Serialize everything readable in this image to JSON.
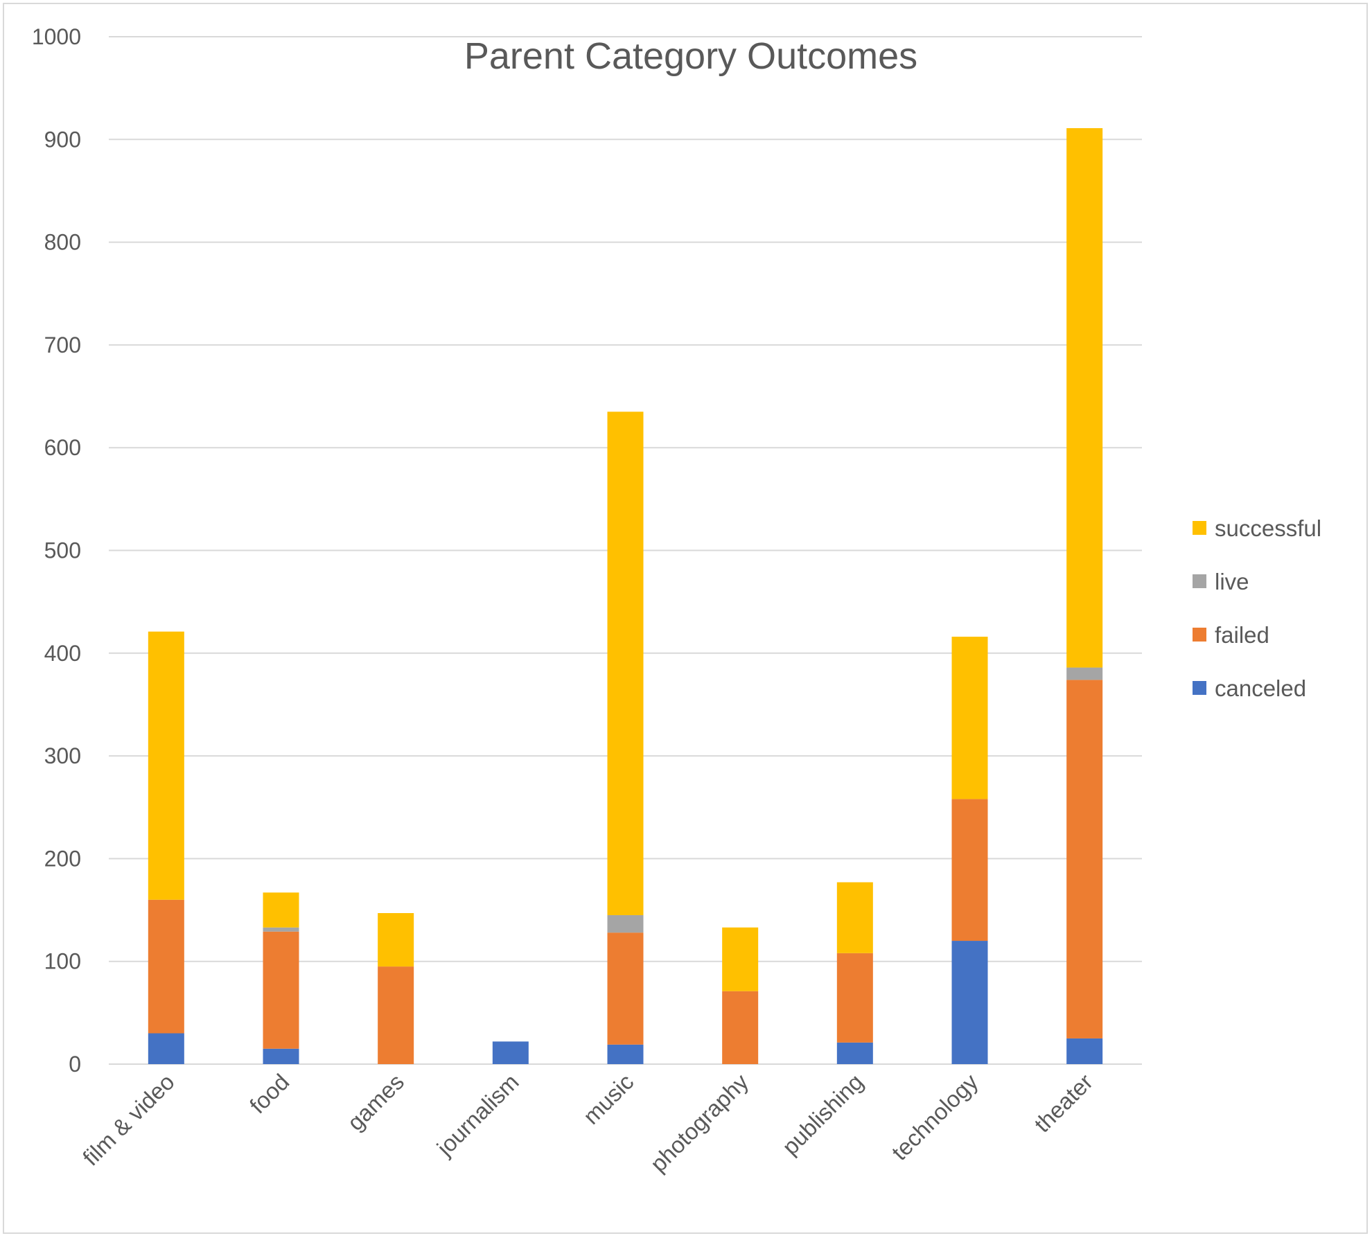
{
  "chart_data": {
    "type": "bar",
    "stacked": true,
    "title": "Parent Category Outcomes",
    "xlabel": "",
    "ylabel": "",
    "ylim": [
      0,
      1000
    ],
    "yticks": [
      0,
      100,
      200,
      300,
      400,
      500,
      600,
      700,
      800,
      900,
      1000
    ],
    "grid": true,
    "legend_position": "right",
    "categories": [
      "film & video",
      "food",
      "games",
      "journalism",
      "music",
      "photography",
      "publishing",
      "technology",
      "theater"
    ],
    "series": [
      {
        "name": "canceled",
        "color": "#4472c4",
        "values": [
          30,
          15,
          0,
          22,
          19,
          0,
          21,
          120,
          25
        ]
      },
      {
        "name": "failed",
        "color": "#ed7d31",
        "values": [
          130,
          114,
          95,
          0,
          109,
          71,
          87,
          138,
          349
        ]
      },
      {
        "name": "live",
        "color": "#a5a5a5",
        "values": [
          0,
          4,
          0,
          0,
          17,
          0,
          0,
          0,
          12
        ]
      },
      {
        "name": "successful",
        "color": "#ffc000",
        "values": [
          261,
          34,
          52,
          0,
          490,
          62,
          69,
          158,
          525
        ]
      }
    ],
    "legend_order": [
      "successful",
      "live",
      "failed",
      "canceled"
    ]
  }
}
